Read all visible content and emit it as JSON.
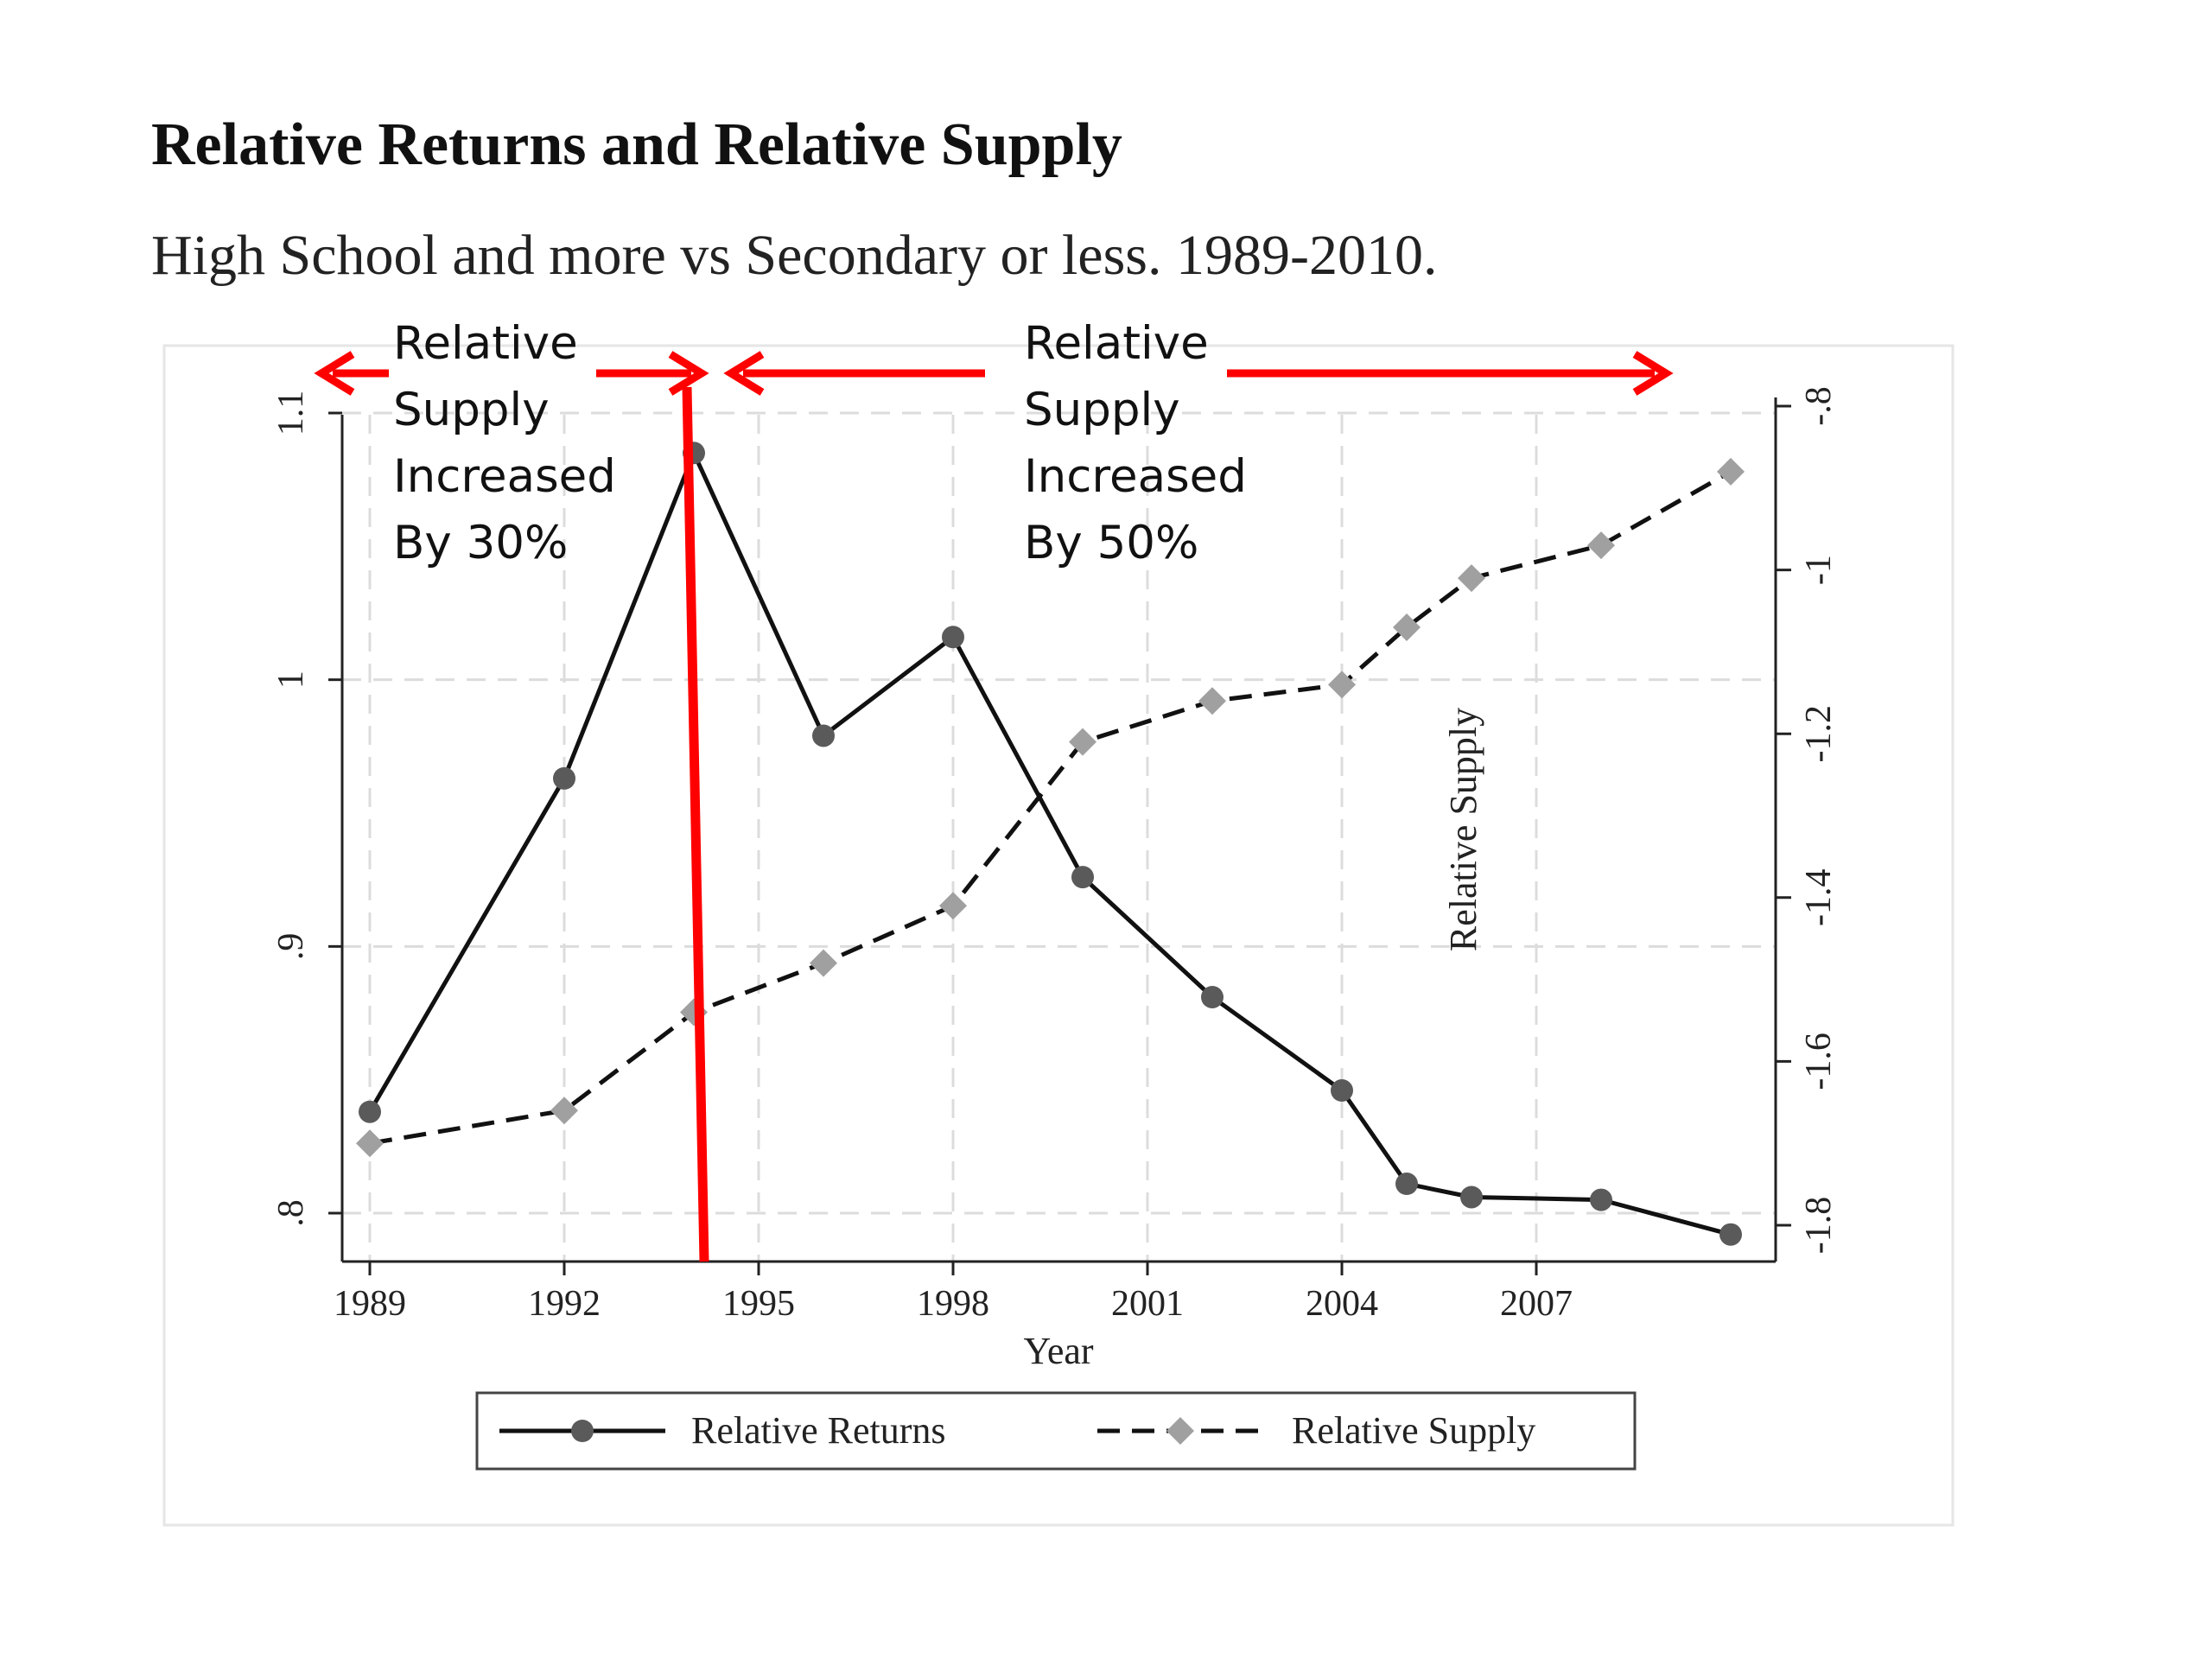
{
  "title": "Relative Returns and Relative Supply",
  "subtitle": "High School and more vs Secondary or less. 1989-2010.",
  "annotations": {
    "left": [
      "Relative",
      "Supply",
      "Increased",
      "By 30%"
    ],
    "right": [
      "Relative",
      "Supply",
      "Increased",
      "By 50%"
    ],
    "arrow_color": "#ff0000"
  },
  "colors": {
    "returns_line": "#111111",
    "returns_marker": "#5a5a5a",
    "supply_line": "#111111",
    "supply_marker": "#a0a0a0",
    "grid": "#dcdcdc"
  },
  "chart_data": {
    "type": "line",
    "title": "Relative Returns and Relative Supply",
    "subtitle": "High School and more vs Secondary or less. 1989-2010.",
    "xlabel": "Year",
    "ylabel": "",
    "y2label": "Relative Supply",
    "x_ticks": [
      "1989",
      "1992",
      "1995",
      "1998",
      "2001",
      "2004",
      "2007"
    ],
    "y_ticks": [
      ".8",
      ".9",
      "1",
      "1.1"
    ],
    "y2_ticks": [
      "-.8",
      "-1",
      "-1.2",
      "-1.4",
      "-1.6",
      "-1.8"
    ],
    "xlim": [
      1989,
      2010
    ],
    "ylim": [
      0.8,
      1.1
    ],
    "y2lim": [
      -1.8,
      -0.8
    ],
    "grid": true,
    "legend_position": "bottom",
    "series": [
      {
        "name": "Relative Returns",
        "axis": "left",
        "style": "solid",
        "marker": "circle",
        "x": [
          1989,
          1992,
          1994,
          1996,
          1998,
          2000,
          2002,
          2004,
          2005,
          2006,
          2008,
          2010
        ],
        "y": [
          0.838,
          0.963,
          1.085,
          0.979,
          1.016,
          0.926,
          0.881,
          0.846,
          0.811,
          0.806,
          0.805,
          0.792
        ]
      },
      {
        "name": "Relative Supply",
        "axis": "right",
        "style": "dashed",
        "marker": "diamond",
        "x": [
          1989,
          1992,
          1994,
          1996,
          1998,
          2000,
          2002,
          2004,
          2005,
          2006,
          2008,
          2010
        ],
        "y": [
          -1.7,
          -1.66,
          -1.54,
          -1.48,
          -1.41,
          -1.21,
          -1.16,
          -1.14,
          -1.07,
          -1.01,
          -0.97,
          -0.88
        ]
      }
    ]
  }
}
